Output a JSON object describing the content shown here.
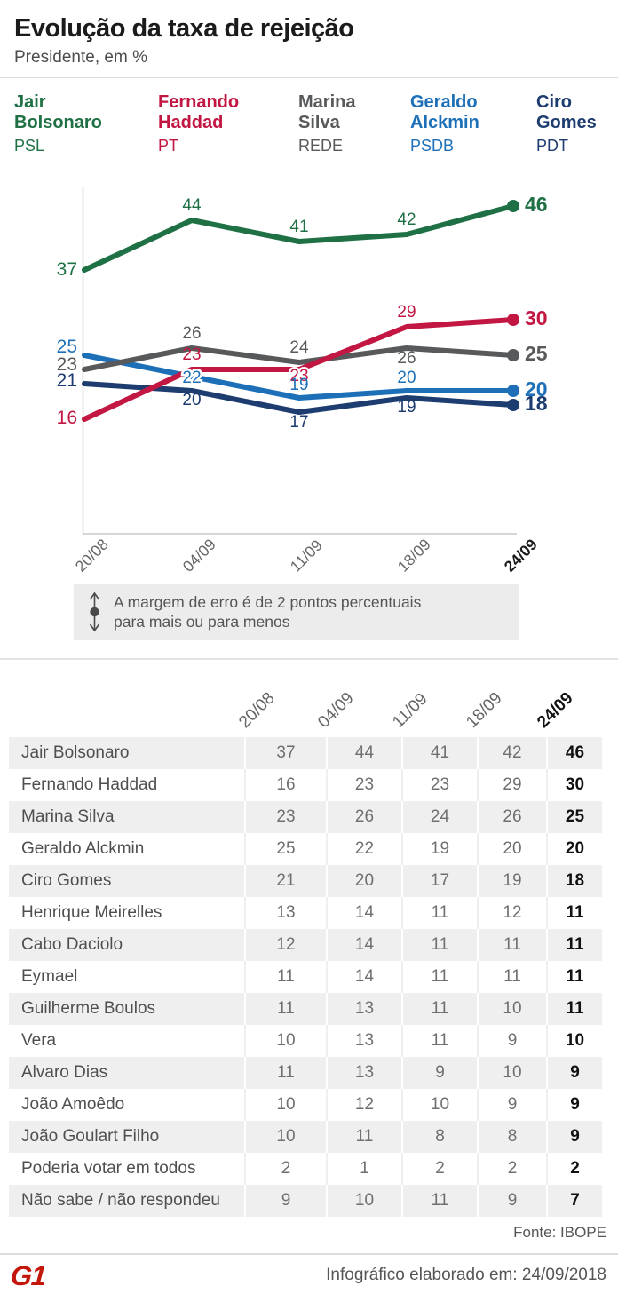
{
  "header": {
    "title": "Evolução da taxa de rejeição",
    "subtitle": "Presidente, em %"
  },
  "legend": {
    "items": [
      {
        "lines": [
          "Jair",
          "Bolsonaro"
        ],
        "party": "PSL",
        "color": "#1f7145"
      },
      {
        "lines": [
          "Fernando",
          "Haddad"
        ],
        "party": "PT",
        "color": "#c21743"
      },
      {
        "lines": [
          "Marina",
          "Silva"
        ],
        "party": "REDE",
        "color": "#58595b"
      },
      {
        "lines": [
          "Geraldo",
          "Alckmin"
        ],
        "party": "PSDB",
        "color": "#1d70b7"
      },
      {
        "lines": [
          "Ciro",
          "Gomes"
        ],
        "party": "PDT",
        "color": "#1d3c6f"
      }
    ]
  },
  "chart_data": {
    "type": "line",
    "title": "Evolução da taxa de rejeição",
    "x": [
      "20/08",
      "04/09",
      "11/09",
      "18/09",
      "24/09"
    ],
    "series": [
      {
        "name": "Jair Bolsonaro",
        "party": "PSL",
        "color": "#1f7145",
        "values": [
          37,
          44,
          41,
          42,
          46
        ]
      },
      {
        "name": "Fernando Haddad",
        "party": "PT",
        "color": "#c21743",
        "values": [
          16,
          23,
          23,
          29,
          30
        ]
      },
      {
        "name": "Marina Silva",
        "party": "REDE",
        "color": "#58595b",
        "values": [
          23,
          26,
          24,
          26,
          25
        ]
      },
      {
        "name": "Geraldo Alckmin",
        "party": "PSDB",
        "color": "#1d70b7",
        "values": [
          25,
          22,
          19,
          20,
          20
        ]
      },
      {
        "name": "Ciro Gomes",
        "party": "PDT",
        "color": "#1d3c6f",
        "values": [
          21,
          20,
          17,
          19,
          18
        ]
      }
    ],
    "ylim": [
      0,
      50
    ],
    "grid": false,
    "legend_position": "top",
    "note_lines": [
      "A margem de erro é de 2 pontos percentuais",
      "para mais ou para menos"
    ]
  },
  "table": {
    "columns": [
      "20/08",
      "04/09",
      "11/09",
      "18/09",
      "24/09"
    ],
    "rows": [
      {
        "label": "Jair Bolsonaro",
        "values": [
          37,
          44,
          41,
          42,
          46
        ]
      },
      {
        "label": "Fernando Haddad",
        "values": [
          16,
          23,
          23,
          29,
          30
        ]
      },
      {
        "label": "Marina Silva",
        "values": [
          23,
          26,
          24,
          26,
          25
        ]
      },
      {
        "label": "Geraldo Alckmin",
        "values": [
          25,
          22,
          19,
          20,
          20
        ]
      },
      {
        "label": "Ciro Gomes",
        "values": [
          21,
          20,
          17,
          19,
          18
        ]
      },
      {
        "label": "Henrique Meirelles",
        "values": [
          13,
          14,
          11,
          12,
          11
        ]
      },
      {
        "label": "Cabo Daciolo",
        "values": [
          12,
          14,
          11,
          11,
          11
        ]
      },
      {
        "label": "Eymael",
        "values": [
          11,
          14,
          11,
          11,
          11
        ]
      },
      {
        "label": "Guilherme Boulos",
        "values": [
          11,
          13,
          11,
          10,
          11
        ]
      },
      {
        "label": "Vera",
        "values": [
          10,
          13,
          11,
          9,
          10
        ]
      },
      {
        "label": "Alvaro Dias",
        "values": [
          11,
          13,
          9,
          10,
          9
        ]
      },
      {
        "label": "João Amoêdo",
        "values": [
          10,
          12,
          10,
          9,
          9
        ]
      },
      {
        "label": "João Goulart Filho",
        "values": [
          10,
          11,
          8,
          8,
          9
        ]
      },
      {
        "label": "Poderia votar em todos",
        "values": [
          2,
          1,
          2,
          2,
          2
        ]
      },
      {
        "label": "Não sabe / não respondeu",
        "values": [
          9,
          10,
          11,
          9,
          7
        ]
      }
    ]
  },
  "footer": {
    "source": "Fonte: IBOPE",
    "credit": "Infográfico elaborado em: 24/09/2018",
    "logo": "G1",
    "logo_color": "#c4170c"
  }
}
